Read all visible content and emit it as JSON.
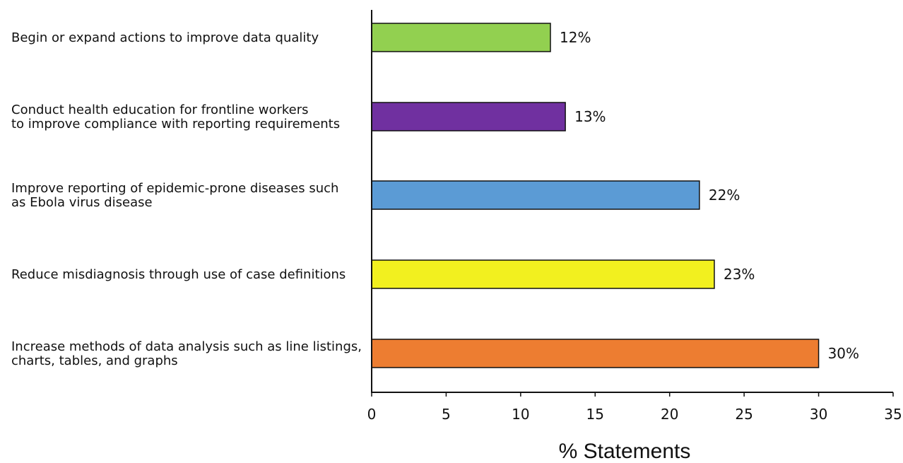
{
  "chart_data": {
    "type": "bar",
    "orientation": "horizontal",
    "categories": [
      [
        "Begin or expand actions to improve data quality"
      ],
      [
        "Conduct health education for frontline workers",
        "to improve compliance with reporting requirements"
      ],
      [
        "Improve reporting of epidemic-prone diseases such",
        "as Ebola virus disease"
      ],
      [
        "Reduce misdiagnosis through use of case definitions"
      ],
      [
        "Increase methods of data analysis such as line listings,",
        "charts, tables, and graphs"
      ]
    ],
    "values": [
      12,
      13,
      22,
      23,
      30
    ],
    "value_labels": [
      "12%",
      "13%",
      "22%",
      "23%",
      "30%"
    ],
    "colors": [
      "#92d050",
      "#7030a0",
      "#5b9bd5",
      "#f2f01f",
      "#ed7d31"
    ],
    "xlabel": "% Statements",
    "xlim": [
      0,
      35
    ],
    "xticks": [
      0,
      5,
      10,
      15,
      20,
      25,
      30,
      35
    ],
    "grid": false,
    "legend": "none"
  }
}
